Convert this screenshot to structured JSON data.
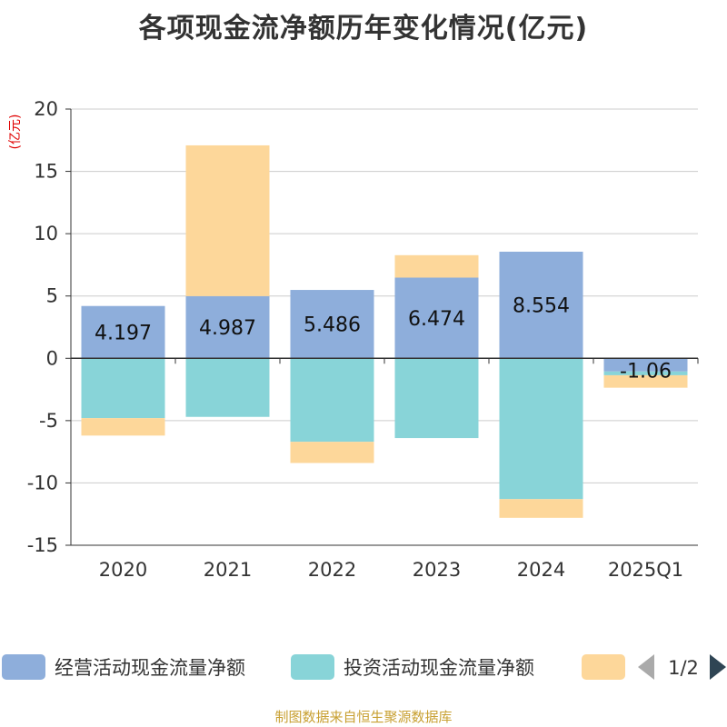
{
  "title": "各项现金流净额历年变化情况(亿元)",
  "footer": "制图数据来自恒生聚源数据库",
  "legend_page": "1/2",
  "colors": {
    "operating": "#8eaedb",
    "investing": "#88d4d8",
    "financing": "#fdd79a",
    "axis": "#333333",
    "grid": "#cccccc",
    "unit_label": "#e00000",
    "nav_disabled": "#aaaaaa",
    "nav_active": "#2f4554"
  },
  "chart_data": {
    "type": "bar",
    "stacked": true,
    "unit_label": "(亿元)",
    "categories": [
      "2020",
      "2021",
      "2022",
      "2023",
      "2024",
      "2025Q1"
    ],
    "ylim": [
      -15,
      20
    ],
    "yticks": [
      20,
      15,
      10,
      5,
      0,
      -5,
      -10,
      -15
    ],
    "grid": true,
    "legend_position": "bottom",
    "series": [
      {
        "name": "经营活动现金流量净额",
        "color_key": "operating",
        "values": [
          4.197,
          4.987,
          5.486,
          6.474,
          8.554,
          -1.06
        ],
        "labels": [
          "4.197",
          "4.987",
          "5.486",
          "6.474",
          "8.554",
          "-1.06"
        ]
      },
      {
        "name": "投资活动现金流量净额",
        "color_key": "investing",
        "values": [
          -4.8,
          -4.7,
          -6.7,
          -6.4,
          -11.3,
          -0.3
        ]
      },
      {
        "name": "",
        "color_key": "financing",
        "values": [
          -1.4,
          12.1,
          -1.7,
          1.8,
          -1.5,
          -1.0
        ]
      }
    ]
  }
}
